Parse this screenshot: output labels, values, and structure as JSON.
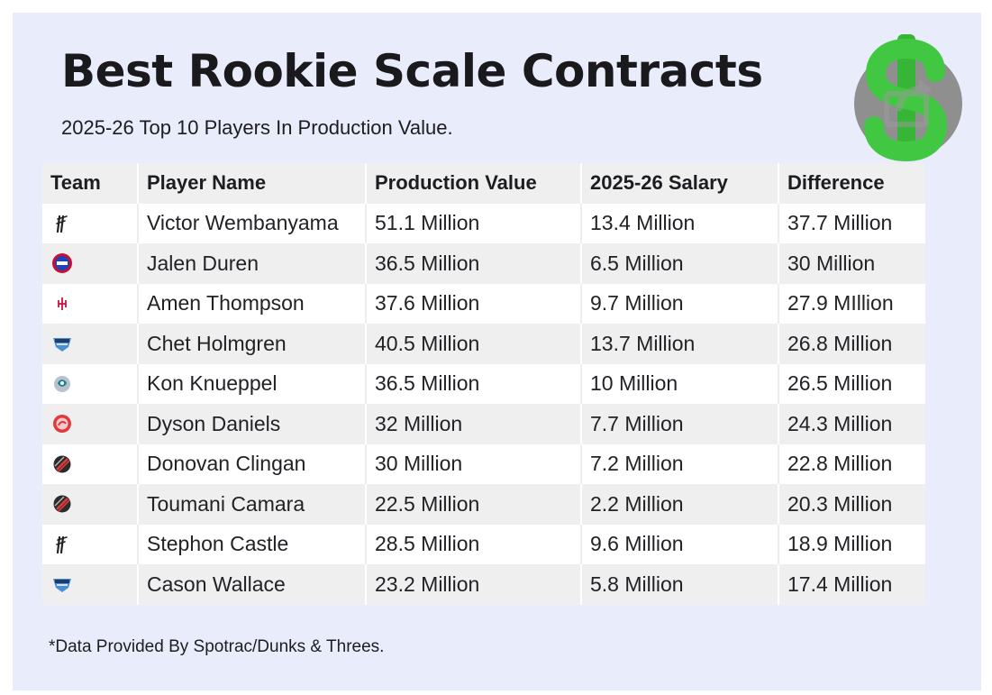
{
  "header": {
    "title": "Best Rookie Scale Contracts",
    "subtitle": "2025-26 Top 10 Players In Production Value."
  },
  "logo": {
    "icon": "green-dollar-sign-with-share-icon",
    "color": "#3fbf3f",
    "badge_color": "#8f8f8f"
  },
  "chart_data": {
    "type": "table",
    "columns": [
      "Team",
      "Player Name",
      "Production Value",
      "2025-26 Salary",
      "Difference"
    ],
    "rows": [
      {
        "team": "spurs-logo-icon",
        "player": "Victor Wembanyama",
        "production": "51.1 Million",
        "salary": "13.4 Million",
        "difference": "37.7 Million"
      },
      {
        "team": "pistons-logo-icon",
        "player": "Jalen Duren",
        "production": "36.5 Million",
        "salary": "6.5 Million",
        "difference": "30 Million"
      },
      {
        "team": "rockets-logo-icon",
        "player": "Amen Thompson",
        "production": "37.6 Million",
        "salary": "9.7 Million",
        "difference": "27.9 MIllion"
      },
      {
        "team": "thunder-logo-icon",
        "player": "Chet Holmgren",
        "production": "40.5 Million",
        "salary": "13.7 Million",
        "difference": "26.8 Million"
      },
      {
        "team": "hornets-logo-icon",
        "player": "Kon Knueppel",
        "production": "36.5 Million",
        "salary": "10 Million",
        "difference": "26.5 Million"
      },
      {
        "team": "hawks-logo-icon",
        "player": "Dyson Daniels",
        "production": "32 Million",
        "salary": "7.7 Million",
        "difference": "24.3 Million"
      },
      {
        "team": "trail-blazers-logo-icon",
        "player": "Donovan Clingan",
        "production": "30 Million",
        "salary": "7.2 Million",
        "difference": "22.8 Million"
      },
      {
        "team": "trail-blazers-logo-icon",
        "player": "Toumani Camara",
        "production": "22.5 Million",
        "salary": "2.2 Million",
        "difference": "20.3 Million"
      },
      {
        "team": "spurs-logo-icon",
        "player": "Stephon Castle",
        "production": "28.5 Million",
        "salary": "9.6 Million",
        "difference": "18.9 Million"
      },
      {
        "team": "thunder-logo-icon",
        "player": "Cason Wallace",
        "production": "23.2 Million",
        "salary": "5.8 Million",
        "difference": "17.4 Million"
      }
    ]
  },
  "footnote": "*Data Provided By Spotrac/Dunks & Threes.",
  "colors": {
    "card_background": "#e9ecfb",
    "header_row": "#efeff0",
    "row_alt": "#efeff0",
    "row_base": "#ffffff"
  }
}
